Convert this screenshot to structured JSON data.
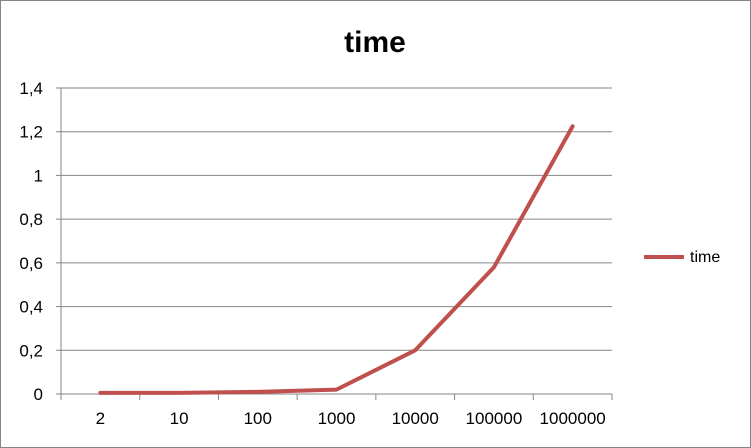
{
  "chart_data": {
    "type": "line",
    "title": "time",
    "categories": [
      "2",
      "10",
      "100",
      "1000",
      "10000",
      "100000",
      "1000000"
    ],
    "series": [
      {
        "name": "time",
        "values": [
          0.005,
          0.005,
          0.01,
          0.02,
          0.2,
          0.58,
          1.225
        ],
        "color": "#C0504D"
      }
    ],
    "y_ticks": [
      "0",
      "0,2",
      "0,4",
      "0,6",
      "0,8",
      "1",
      "1,2",
      "1,4"
    ],
    "ylim": [
      0,
      1.4
    ],
    "ystep": 0.2,
    "grid": true,
    "legend": "right"
  }
}
